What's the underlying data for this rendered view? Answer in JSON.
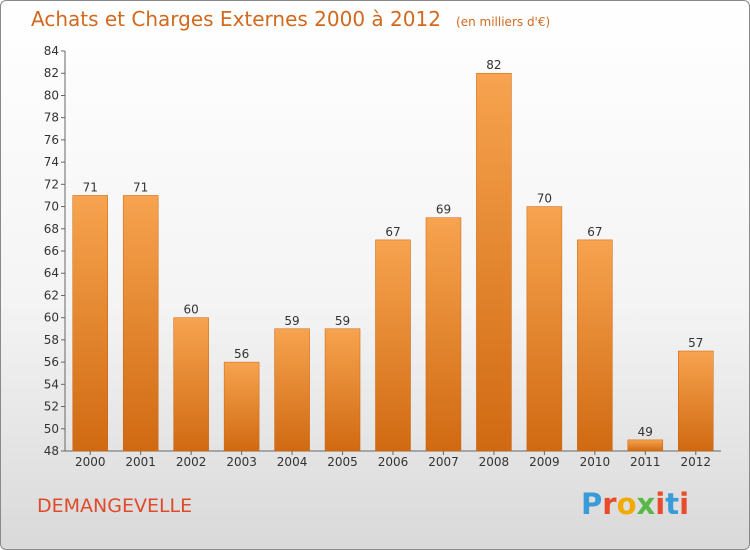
{
  "header": {
    "title": "Achats et Charges Externes 2000 à 2012",
    "unit": "(en milliers d'€)"
  },
  "footer": {
    "commune": "DEMANGEVELLE",
    "logo_letters": [
      "P",
      "r",
      "o",
      "x",
      "i",
      "t",
      "i"
    ],
    "logo_colors": [
      "#3a9bd9",
      "#e84c2a",
      "#f2a900",
      "#58b947",
      "#e84c2a",
      "#3a9bd9",
      "#e84c2a"
    ]
  },
  "colors": {
    "title": "#d2691e",
    "bar_top": "#f7a34f",
    "bar_bottom": "#d06a12",
    "commune": "#e04a2a"
  },
  "chart_data": {
    "type": "bar",
    "title": "Achats et Charges Externes 2000 à 2012",
    "subtitle": "(en milliers d'€)",
    "categories": [
      "2000",
      "2001",
      "2002",
      "2003",
      "2004",
      "2005",
      "2006",
      "2007",
      "2008",
      "2009",
      "2010",
      "2011",
      "2012"
    ],
    "values": [
      71,
      71,
      60,
      56,
      59,
      59,
      67,
      69,
      82,
      70,
      67,
      49,
      57
    ],
    "ylim": [
      48,
      84
    ],
    "yticks": [
      48,
      50,
      52,
      54,
      56,
      58,
      60,
      62,
      64,
      66,
      68,
      70,
      72,
      74,
      76,
      78,
      80,
      82,
      84
    ],
    "grid": false,
    "xlabel": "",
    "ylabel": ""
  }
}
